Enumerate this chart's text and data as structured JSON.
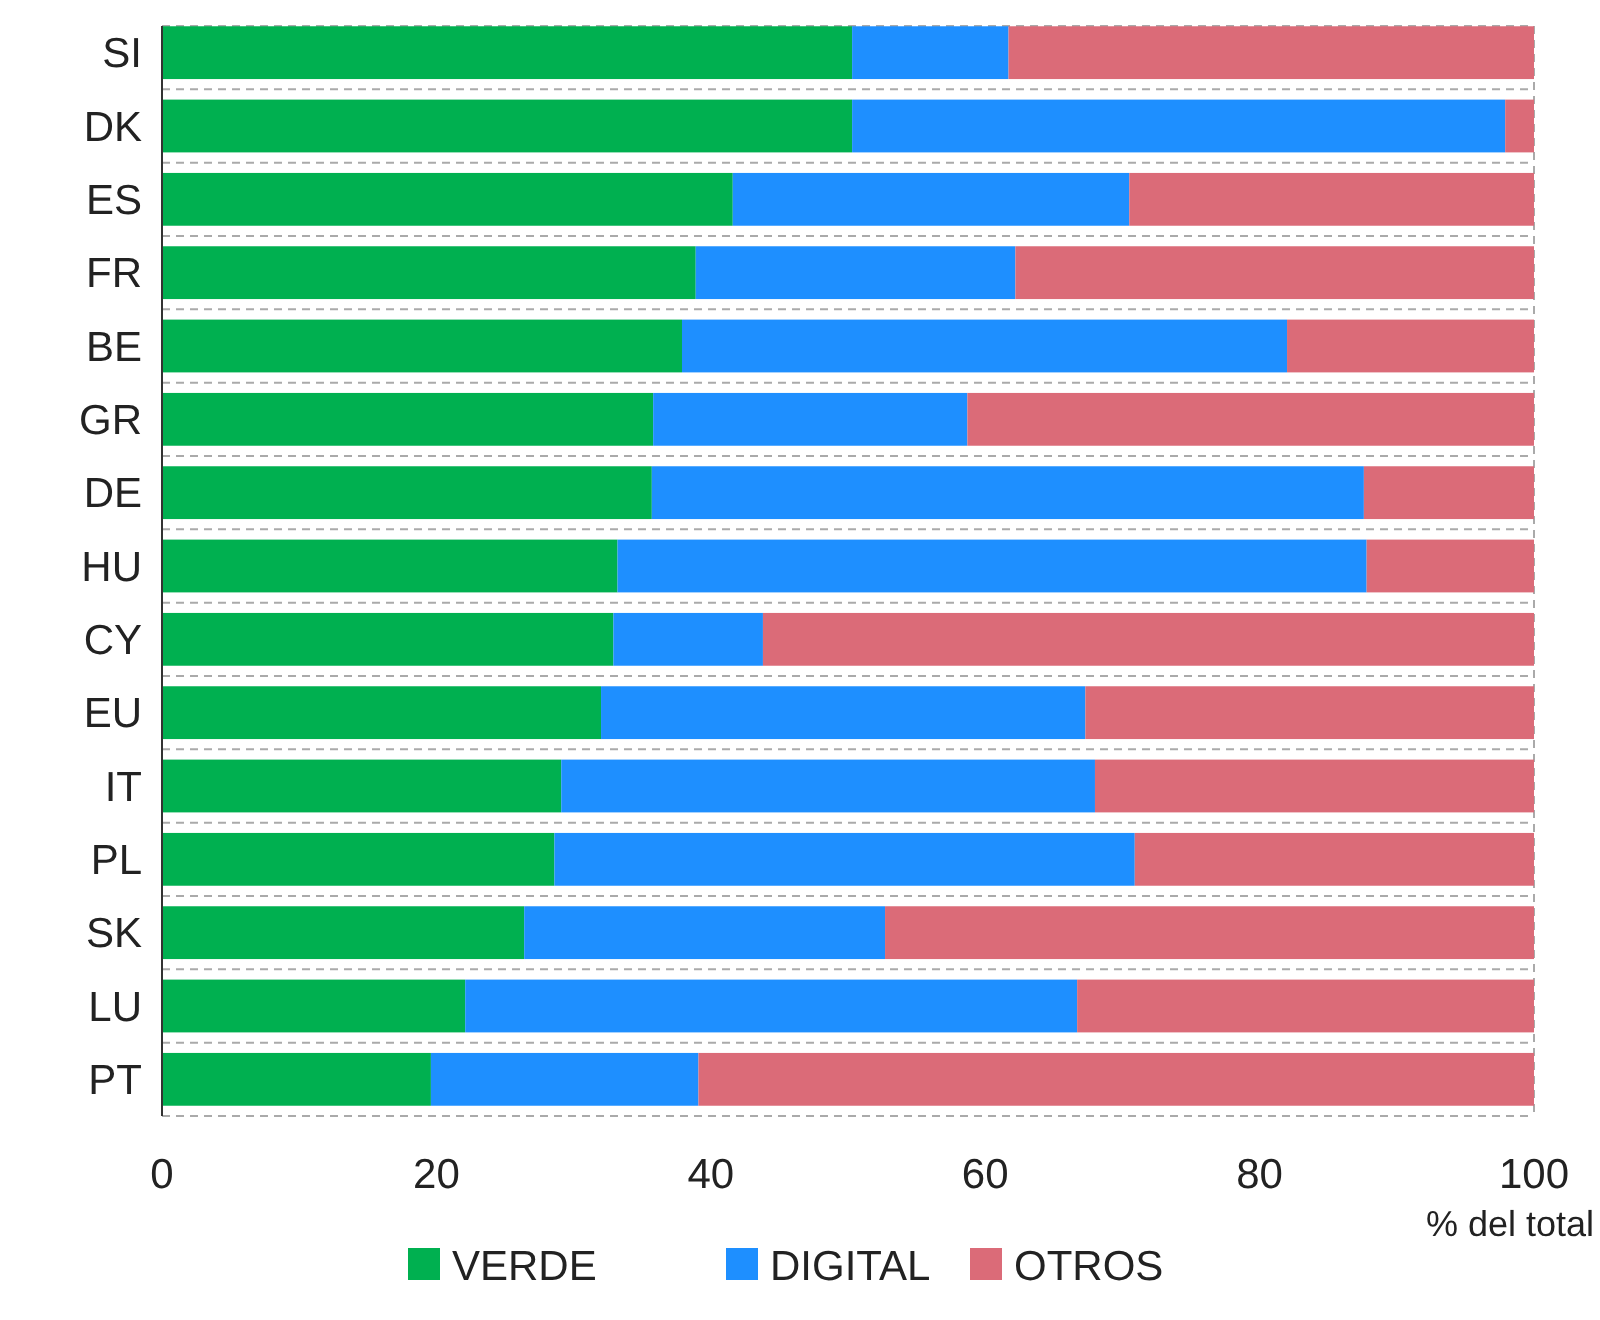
{
  "chart_data": {
    "type": "bar",
    "orientation": "horizontal",
    "stacked": true,
    "xlabel": "% del total",
    "categories": [
      "SI",
      "DK",
      "ES",
      "FR",
      "BE",
      "GR",
      "DE",
      "HU",
      "CY",
      "EU",
      "IT",
      "PL",
      "SK",
      "LU",
      "PT"
    ],
    "series": [
      {
        "name": "VERDE",
        "color": "#00b050",
        "values": [
          50.3,
          50.3,
          41.6,
          38.9,
          37.9,
          35.8,
          35.7,
          33.2,
          32.9,
          32.0,
          29.1,
          28.6,
          26.4,
          22.1,
          19.6
        ]
      },
      {
        "name": "DIGITAL",
        "color": "#1e8fff",
        "values": [
          11.4,
          47.6,
          28.9,
          23.3,
          44.1,
          22.9,
          51.9,
          54.6,
          10.9,
          35.3,
          38.9,
          42.3,
          26.3,
          44.6,
          19.5
        ]
      },
      {
        "name": "OTROS",
        "color": "#db6b78",
        "values": [
          38.3,
          2.1,
          29.5,
          37.8,
          18.0,
          41.3,
          12.4,
          12.2,
          56.2,
          32.7,
          32.0,
          29.1,
          47.3,
          33.3,
          60.9
        ]
      }
    ],
    "xlim": [
      0,
      100
    ],
    "xticks": [
      0,
      20,
      40,
      60,
      80,
      100
    ],
    "grid": "y",
    "legend": "bottom"
  }
}
